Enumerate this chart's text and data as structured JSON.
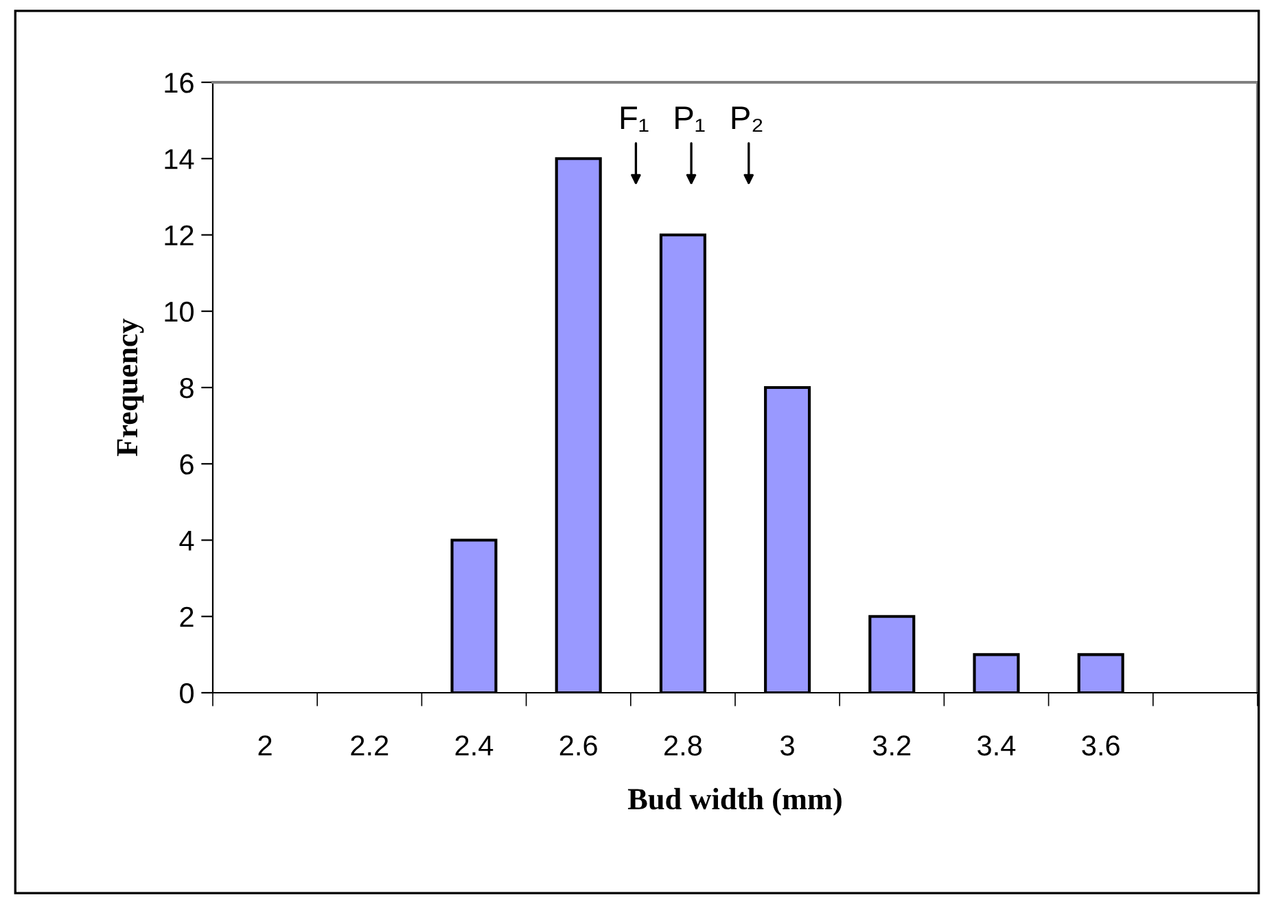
{
  "chart_data": {
    "type": "bar",
    "xlabel": "Bud width (mm)",
    "ylabel": "Frequency",
    "categories": [
      "2",
      "2.2",
      "2.4",
      "2.6",
      "2.8",
      "3",
      "3.2",
      "3.4",
      "3.6",
      null
    ],
    "values": [
      0,
      0,
      4,
      14,
      12,
      8,
      2,
      1,
      1,
      0
    ],
    "color": "#9999ff",
    "ylim": [
      0,
      16
    ],
    "yticks": [
      0,
      2,
      4,
      6,
      8,
      10,
      12,
      14,
      16
    ],
    "grid": false,
    "annotations": [
      "F₁",
      "P₁",
      "P₂"
    ]
  }
}
